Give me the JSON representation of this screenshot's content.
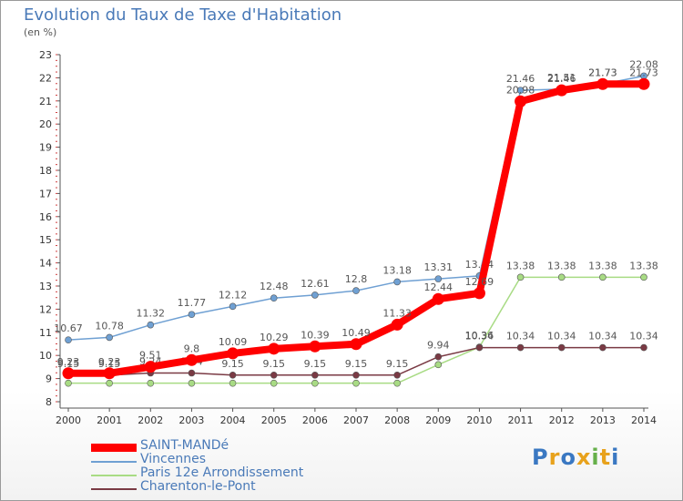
{
  "title": "Evolution du Taux de Taxe d'Habitation",
  "unit": "(en %)",
  "logo": {
    "p": "P",
    "r": "r",
    "o": "o",
    "x": "x",
    "i1": "i",
    "t": "t",
    "i2": "i"
  },
  "colors": {
    "saint_mande": "#ff0000",
    "vincennes": "#6fa0d3",
    "paris12": "#a8db84",
    "charenton": "#7a3a44",
    "title": "#4a7ab8"
  },
  "chart_data": {
    "type": "line",
    "ylim": [
      8,
      23
    ],
    "yticks": [
      8,
      9,
      10,
      11,
      12,
      13,
      14,
      15,
      16,
      17,
      18,
      19,
      20,
      21,
      22,
      23
    ],
    "x": [
      "2000",
      "2001",
      "2002",
      "2003",
      "2004",
      "2005",
      "2006",
      "2007",
      "2008",
      "2009",
      "2010",
      "2011",
      "2012",
      "2013",
      "2014"
    ],
    "series": [
      {
        "key": "vincennes",
        "name": "Vincennes",
        "values": [
          10.67,
          10.78,
          11.32,
          11.77,
          12.12,
          12.48,
          12.61,
          12.8,
          13.18,
          13.31,
          13.44,
          21.46,
          21.51,
          21.73,
          22.08
        ],
        "labels": [
          "10.67",
          "10.78",
          "11.32",
          "11.77",
          "12.12",
          "12.48",
          "12.61",
          "12.8",
          "13.18",
          "13.31",
          "13.44",
          "21.46",
          "21.51",
          "21.73",
          "22.08"
        ]
      },
      {
        "key": "paris12",
        "name": "Paris 12e  Arrondissement",
        "values": [
          8.8,
          8.8,
          8.8,
          8.8,
          8.8,
          8.8,
          8.8,
          8.8,
          8.8,
          9.6,
          10.36,
          13.38,
          13.38,
          13.38,
          13.38
        ],
        "labels": [
          "",
          "",
          "",
          "",
          "",
          "",
          "",
          "",
          "",
          "",
          "10.36",
          "13.38",
          "13.38",
          "13.38",
          "13.38"
        ]
      },
      {
        "key": "charenton",
        "name": "Charenton-le-Pont",
        "values": [
          9.15,
          9.15,
          9.24,
          9.24,
          9.15,
          9.15,
          9.15,
          9.15,
          9.15,
          9.94,
          10.34,
          10.34,
          10.34,
          10.34,
          10.34
        ],
        "labels": [
          "9.15",
          "9.15",
          "9.24",
          "9.24",
          "9.15",
          "9.15",
          "9.15",
          "9.15",
          "9.15",
          "9.94",
          "10.34",
          "10.34",
          "10.34",
          "10.34",
          "10.34"
        ]
      },
      {
        "key": "saint_mande",
        "name": "SAINT-MANDé",
        "values": [
          9.23,
          9.23,
          9.51,
          9.8,
          10.09,
          10.29,
          10.39,
          10.49,
          11.33,
          12.44,
          12.69,
          20.98,
          21.46,
          21.73,
          21.73
        ],
        "labels": [
          "9.23",
          "9.23",
          "9.51",
          "9.8",
          "10.09",
          "10.29",
          "10.39",
          "10.49",
          "11.33",
          "12.44",
          "12.69",
          "20.98",
          "21.46",
          "21.73",
          "21.73"
        ]
      }
    ]
  },
  "legend": [
    {
      "key": "saint_mande",
      "label": "SAINT-MANDé"
    },
    {
      "key": "vincennes",
      "label": "Vincennes"
    },
    {
      "key": "paris12",
      "label": "Paris 12e  Arrondissement"
    },
    {
      "key": "charenton",
      "label": "Charenton-le-Pont"
    }
  ]
}
